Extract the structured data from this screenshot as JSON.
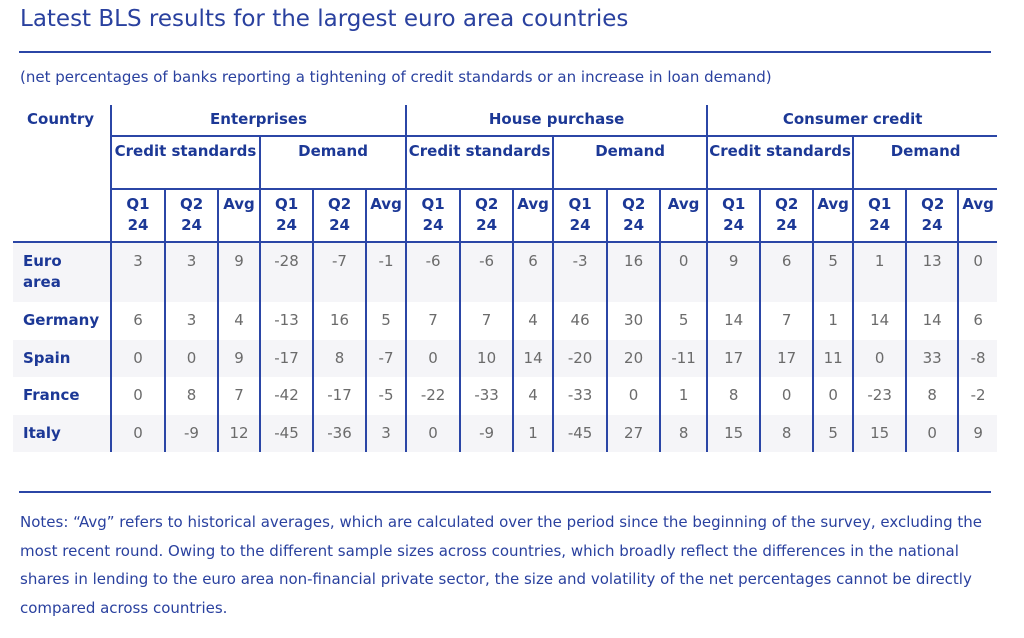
{
  "title": "Latest BLS results for the largest euro area countries",
  "subtitle": "(net percentages of banks reporting a tightening of credit standards or an increase in loan demand)",
  "headers": {
    "country": "Country",
    "groups": [
      "Enterprises",
      "House purchase",
      "Consumer credit"
    ],
    "credit": "Credit standards",
    "demand": "Demand",
    "q1": "Q1 24",
    "q2": "Q2 24",
    "avg": "Avg"
  },
  "rows": [
    {
      "country": "Euro area",
      "values": [
        "3",
        "3",
        "9",
        "-28",
        "-7",
        "-1",
        "-6",
        "-6",
        "6",
        "-3",
        "16",
        "0",
        "9",
        "6",
        "5",
        "1",
        "13",
        "0"
      ]
    },
    {
      "country": "Germany",
      "values": [
        "6",
        "3",
        "4",
        "-13",
        "16",
        "5",
        "7",
        "7",
        "4",
        "46",
        "30",
        "5",
        "14",
        "7",
        "1",
        "14",
        "14",
        "6"
      ]
    },
    {
      "country": "Spain",
      "values": [
        "0",
        "0",
        "9",
        "-17",
        "8",
        "-7",
        "0",
        "10",
        "14",
        "-20",
        "20",
        "-11",
        "17",
        "17",
        "11",
        "0",
        "33",
        "-8"
      ]
    },
    {
      "country": "France",
      "values": [
        "0",
        "8",
        "7",
        "-42",
        "-17",
        "-5",
        "-22",
        "-33",
        "4",
        "-33",
        "0",
        "1",
        "8",
        "0",
        "0",
        "-23",
        "8",
        "-2"
      ]
    },
    {
      "country": "Italy",
      "values": [
        "0",
        "-9",
        "12",
        "-45",
        "-36",
        "3",
        "0",
        "-9",
        "1",
        "-45",
        "27",
        "8",
        "15",
        "8",
        "5",
        "15",
        "0",
        "9"
      ]
    }
  ],
  "notes": "Notes: “Avg” refers to historical averages, which are calculated over the period since the beginning of the survey, excluding the most recent round. Owing to the different sample sizes across countries, which broadly reflect the differences in the national shares in lending to the euro area non-financial private sector, the size and volatility of the net percentages cannot be directly compared across countries."
}
